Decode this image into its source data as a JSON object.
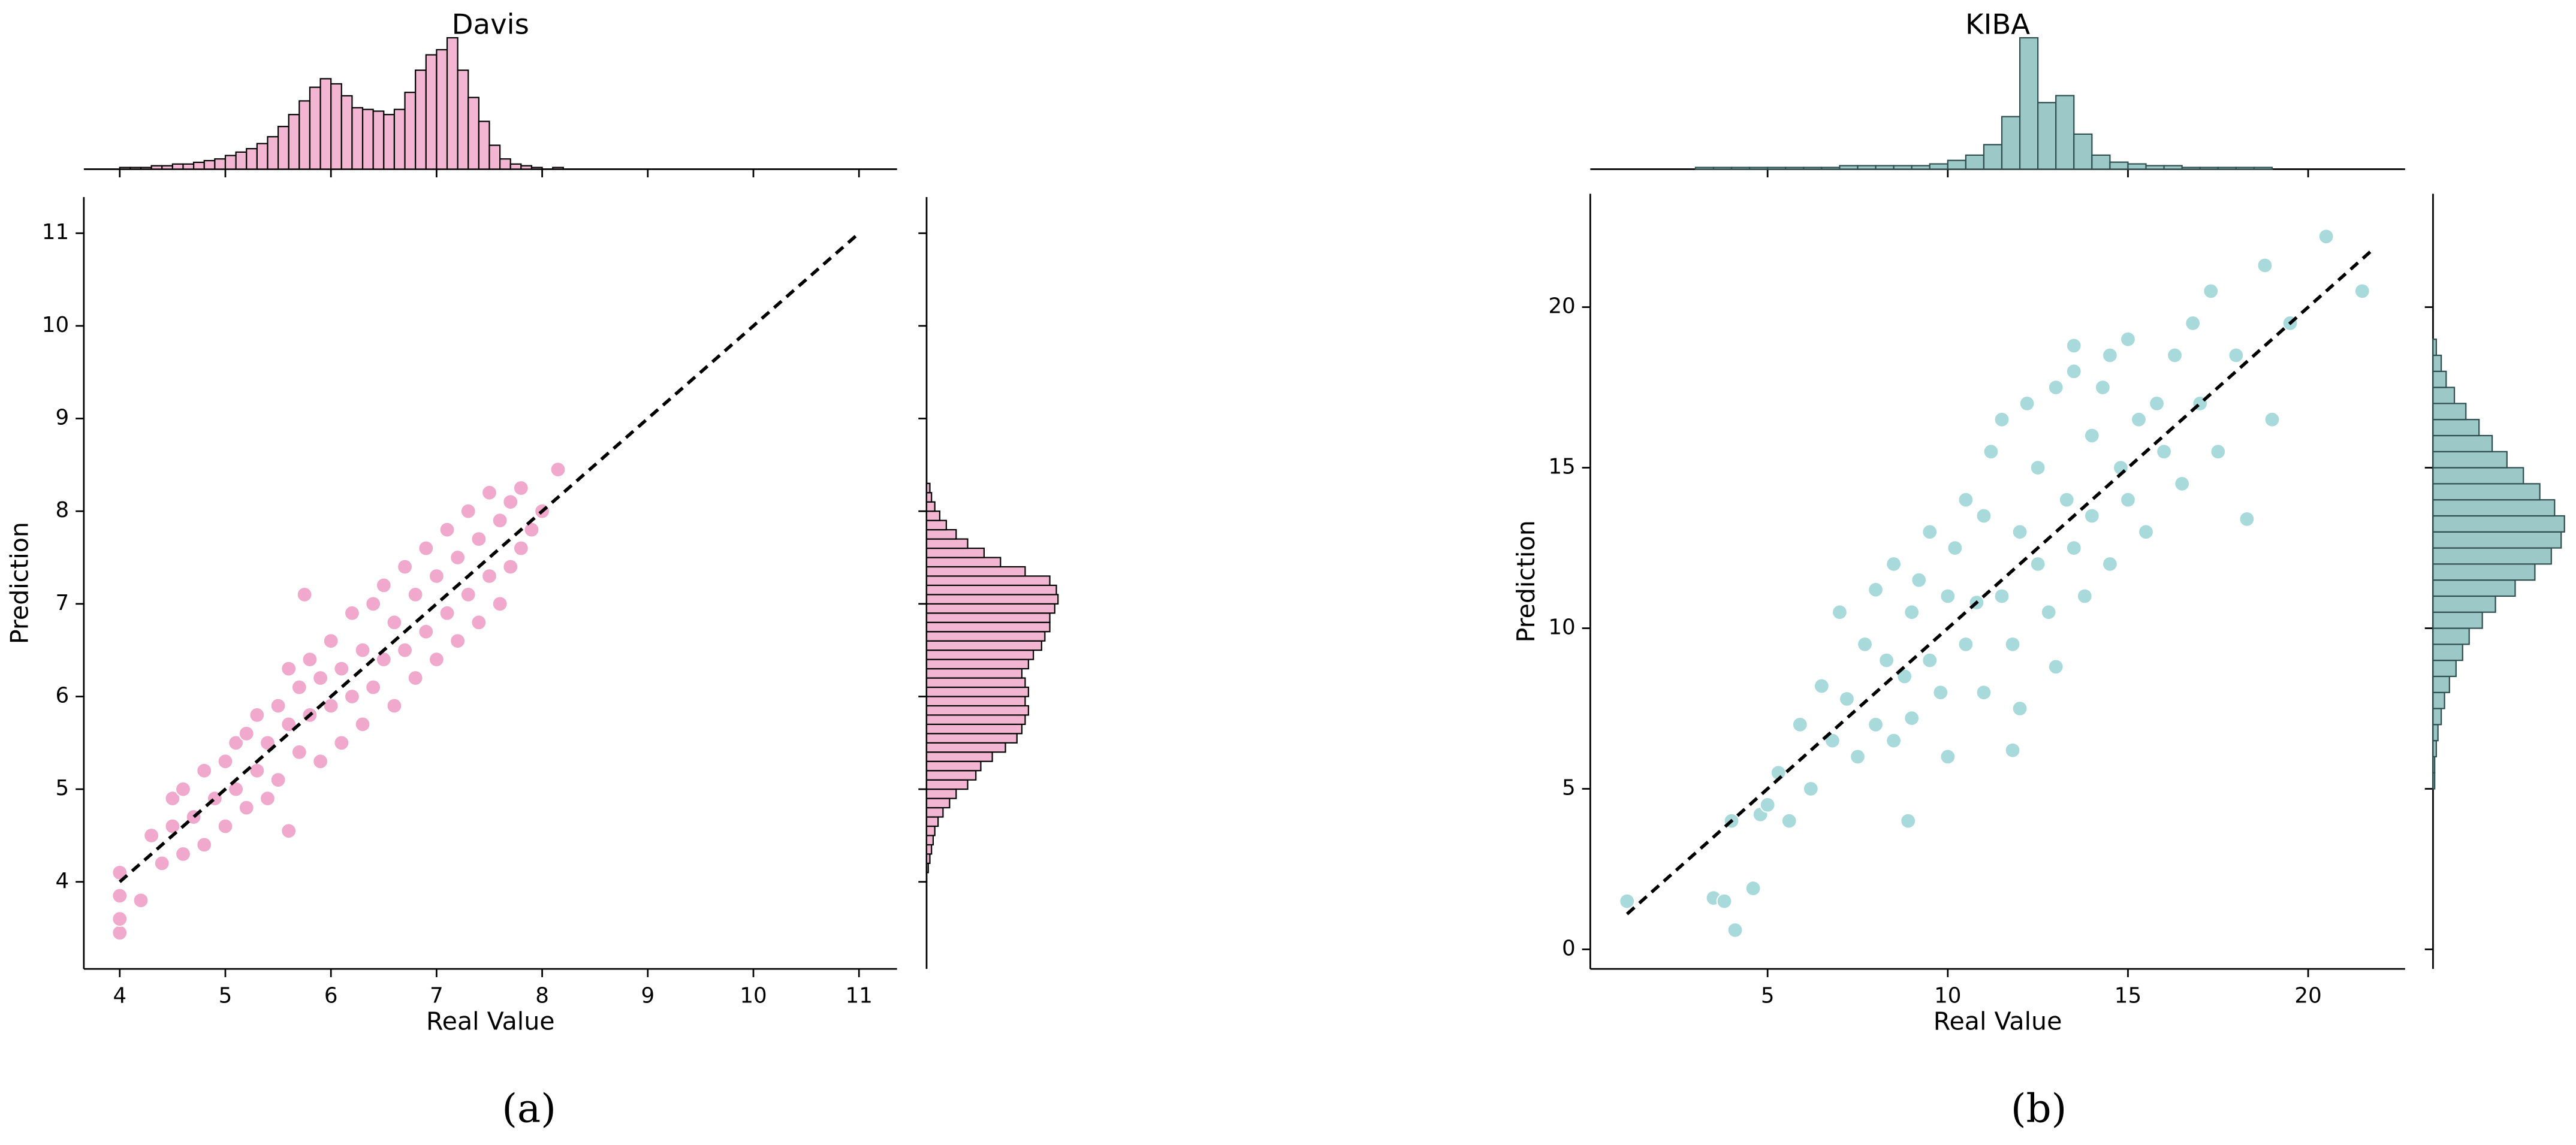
{
  "chart_data": [
    {
      "type": "scatter",
      "title": "Davis",
      "x_label": "Real Value",
      "y_label": "Prediction",
      "caption": "(a)",
      "color": "#f0a8cc",
      "hist_color": "#f2b6d2",
      "edge_color": "#000000",
      "xlim": [
        3.66,
        11.36
      ],
      "ylim": [
        3.06,
        11.39
      ],
      "xticks": [
        4,
        5,
        6,
        7,
        8,
        9,
        10,
        11
      ],
      "yticks": [
        4,
        5,
        6,
        7,
        8,
        9,
        10,
        11
      ],
      "x": [
        4.0,
        4.0,
        4.0,
        4.0,
        4.2,
        4.3,
        4.4,
        4.5,
        4.5,
        4.6,
        4.6,
        4.7,
        4.8,
        4.8,
        4.9,
        5.0,
        5.0,
        5.1,
        5.1,
        5.2,
        5.2,
        5.3,
        5.3,
        5.4,
        5.4,
        5.5,
        5.5,
        5.6,
        5.6,
        5.6,
        5.7,
        5.7,
        5.75,
        5.8,
        5.8,
        5.9,
        5.9,
        6.0,
        6.0,
        6.1,
        6.1,
        6.2,
        6.2,
        6.3,
        6.3,
        6.4,
        6.4,
        6.5,
        6.5,
        6.6,
        6.6,
        6.7,
        6.7,
        6.8,
        6.8,
        6.9,
        6.9,
        7.0,
        7.0,
        7.1,
        7.1,
        7.2,
        7.2,
        7.3,
        7.3,
        7.4,
        7.4,
        7.5,
        7.5,
        7.6,
        7.6,
        7.7,
        7.7,
        7.8,
        7.8,
        7.9,
        8.0,
        8.15
      ],
      "y": [
        3.45,
        3.6,
        3.85,
        4.1,
        3.8,
        4.5,
        4.2,
        4.6,
        4.9,
        4.3,
        5.0,
        4.7,
        5.2,
        4.4,
        4.9,
        5.3,
        4.6,
        5.0,
        5.5,
        4.8,
        5.6,
        5.2,
        5.8,
        4.9,
        5.5,
        5.9,
        5.1,
        4.55,
        5.7,
        6.3,
        5.4,
        6.1,
        7.1,
        5.8,
        6.4,
        5.3,
        6.2,
        5.9,
        6.6,
        5.5,
        6.3,
        6.0,
        6.9,
        5.7,
        6.5,
        6.1,
        7.0,
        6.4,
        7.2,
        5.9,
        6.8,
        6.5,
        7.4,
        6.2,
        7.1,
        6.7,
        7.6,
        6.4,
        7.3,
        6.9,
        7.8,
        6.6,
        7.5,
        7.1,
        8.0,
        6.8,
        7.7,
        7.3,
        8.2,
        7.0,
        7.9,
        7.4,
        8.1,
        7.6,
        8.25,
        7.8,
        8.0,
        8.45
      ],
      "reference_line": {
        "x": [
          4,
          11
        ],
        "y": [
          4,
          11
        ]
      },
      "x_hist": {
        "bins": [
          4.0,
          4.1,
          4.2,
          4.3,
          4.4,
          4.5,
          4.6,
          4.7,
          4.8,
          4.9,
          5.0,
          5.1,
          5.2,
          5.3,
          5.4,
          5.5,
          5.6,
          5.7,
          5.8,
          5.9,
          6.0,
          6.1,
          6.2,
          6.3,
          6.4,
          6.5,
          6.6,
          6.7,
          6.8,
          6.9,
          7.0,
          7.1,
          7.2,
          7.3,
          7.4,
          7.5,
          7.6,
          7.7,
          7.8,
          7.9,
          8.0,
          8.1,
          8.2
        ],
        "counts": [
          1,
          1,
          1,
          2,
          2,
          3,
          3,
          4,
          5,
          6,
          8,
          10,
          12,
          15,
          19,
          25,
          32,
          40,
          48,
          53,
          50,
          43,
          36,
          35,
          34,
          32,
          35,
          45,
          58,
          67,
          70,
          77,
          58,
          42,
          28,
          14,
          6,
          3,
          2,
          1,
          0,
          1
        ]
      },
      "y_hist": {
        "bins": [
          4.1,
          4.2,
          4.3,
          4.4,
          4.5,
          4.6,
          4.7,
          4.8,
          4.9,
          5.0,
          5.1,
          5.2,
          5.3,
          5.4,
          5.5,
          5.6,
          5.7,
          5.8,
          5.9,
          6.0,
          6.1,
          6.2,
          6.3,
          6.4,
          6.5,
          6.6,
          6.7,
          6.8,
          6.9,
          7.0,
          7.1,
          7.2,
          7.3,
          7.4,
          7.5,
          7.6,
          7.7,
          7.8,
          7.9,
          8.0,
          8.1,
          8.2,
          8.3
        ],
        "counts": [
          1,
          2,
          3,
          4,
          5,
          7,
          10,
          14,
          18,
          25,
          30,
          33,
          40,
          48,
          55,
          58,
          60,
          62,
          60,
          62,
          60,
          58,
          62,
          65,
          70,
          72,
          75,
          75,
          78,
          80,
          79,
          75,
          60,
          45,
          35,
          25,
          18,
          12,
          8,
          5,
          3,
          2
        ]
      }
    },
    {
      "type": "scatter",
      "title": "KIBA",
      "x_label": "Real Value",
      "y_label": "Prediction",
      "caption": "(b)",
      "color": "#a8dadc",
      "hist_color": "#9cc8c8",
      "edge_color": "#2f4f4f",
      "xlim": [
        0.08,
        22.69
      ],
      "ylim": [
        -0.61,
        23.53
      ],
      "xticks": [
        5,
        10,
        15,
        20
      ],
      "yticks": [
        0,
        5,
        10,
        15,
        20
      ],
      "x": [
        1.1,
        3.5,
        3.8,
        4.0,
        4.1,
        4.6,
        4.8,
        5.0,
        5.3,
        5.6,
        5.9,
        6.2,
        6.5,
        6.8,
        7.0,
        7.2,
        7.5,
        7.7,
        8.0,
        8.0,
        8.3,
        8.5,
        8.5,
        8.8,
        9.0,
        9.0,
        9.2,
        9.5,
        9.5,
        9.8,
        10.0,
        10.0,
        10.2,
        10.5,
        10.5,
        10.8,
        11.0,
        11.0,
        11.2,
        11.5,
        11.5,
        11.8,
        12.0,
        12.0,
        12.2,
        12.5,
        12.5,
        12.8,
        13.0,
        13.0,
        13.3,
        13.5,
        13.5,
        13.8,
        14.0,
        14.0,
        14.3,
        14.5,
        14.5,
        14.8,
        15.0,
        15.0,
        15.3,
        15.5,
        15.8,
        16.0,
        16.3,
        16.5,
        16.8,
        17.0,
        17.3,
        17.5,
        18.0,
        18.3,
        18.8,
        19.0,
        19.5,
        20.5,
        21.5,
        8.9,
        11.8,
        13.5
      ],
      "y": [
        1.5,
        1.6,
        1.5,
        4.0,
        0.6,
        1.9,
        4.2,
        4.5,
        5.5,
        4.0,
        7.0,
        5.0,
        8.2,
        6.5,
        10.5,
        7.8,
        6.0,
        9.5,
        11.2,
        7.0,
        9.0,
        12.0,
        6.5,
        8.5,
        10.5,
        7.2,
        11.5,
        9.0,
        13.0,
        8.0,
        11.0,
        6.0,
        12.5,
        9.5,
        14.0,
        10.8,
        13.5,
        8.0,
        15.5,
        11.0,
        16.5,
        9.5,
        13.0,
        7.5,
        17.0,
        12.0,
        15.0,
        10.5,
        17.5,
        8.8,
        14.0,
        12.5,
        18.0,
        11.0,
        16.0,
        13.5,
        17.5,
        12.0,
        18.5,
        15.0,
        14.0,
        19.0,
        16.5,
        13.0,
        17.0,
        15.5,
        18.5,
        14.5,
        19.5,
        17.0,
        20.5,
        15.5,
        18.5,
        13.4,
        21.3,
        16.5,
        19.5,
        22.2,
        20.5,
        4.0,
        6.2,
        18.8
      ],
      "reference_line": {
        "x": [
          1.1,
          21.8
        ],
        "y": [
          1.1,
          21.8
        ]
      },
      "x_hist": {
        "bins": [
          3,
          3.5,
          4,
          4.5,
          5,
          5.5,
          6,
          6.5,
          7,
          7.5,
          8,
          8.5,
          9,
          9.5,
          10,
          10.5,
          11,
          11.5,
          12,
          12.5,
          13,
          13.5,
          14,
          14.5,
          15,
          15.5,
          16,
          16.5,
          17,
          17.5,
          18,
          18.5,
          19
        ],
        "counts": [
          1,
          1,
          1,
          1,
          1,
          1,
          1,
          1,
          2,
          2,
          2,
          2,
          2,
          3,
          5,
          8,
          14,
          30,
          75,
          38,
          42,
          20,
          8,
          4,
          3,
          2,
          2,
          1,
          1,
          1,
          1,
          1
        ]
      },
      "y_hist": {
        "bins": [
          5,
          5.5,
          6,
          6.5,
          7,
          7.5,
          8,
          8.5,
          9,
          9.5,
          10,
          10.5,
          11,
          11.5,
          12,
          12.5,
          13,
          13.5,
          14,
          14.5,
          15,
          15.5,
          16,
          16.5,
          17,
          17.5,
          18,
          18.5,
          19
        ],
        "counts": [
          1,
          1,
          2,
          3,
          5,
          7,
          10,
          14,
          18,
          22,
          30,
          38,
          50,
          62,
          72,
          78,
          80,
          74,
          65,
          55,
          45,
          36,
          28,
          20,
          13,
          8,
          5,
          2
        ]
      }
    }
  ]
}
